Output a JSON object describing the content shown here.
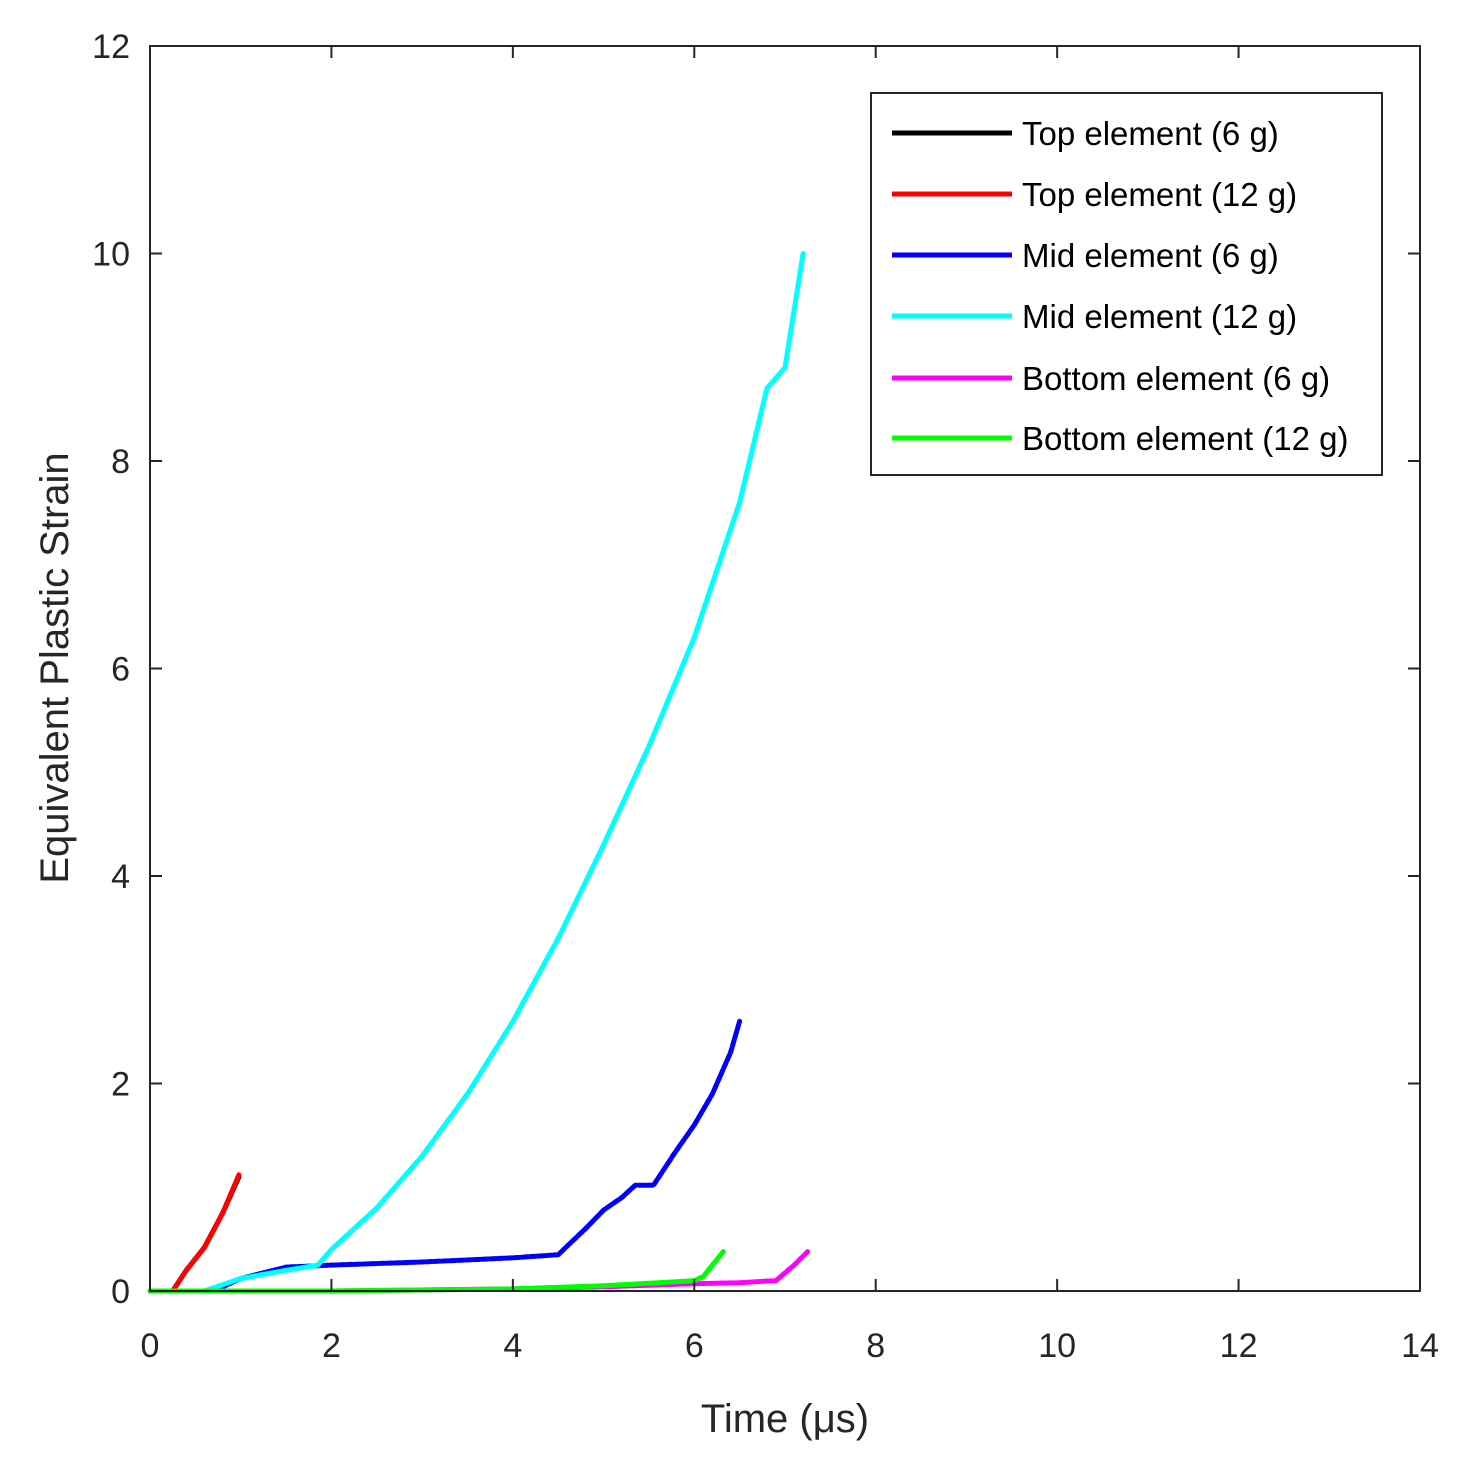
{
  "chart_data": {
    "type": "line",
    "title": "",
    "xlabel": "Time (μs)",
    "ylabel": "Equivalent Plastic Strain",
    "xlim": [
      0,
      14
    ],
    "ylim": [
      0,
      12
    ],
    "xticks": [
      0,
      2,
      4,
      6,
      8,
      10,
      12,
      14
    ],
    "yticks": [
      0,
      2,
      4,
      6,
      8,
      10,
      12
    ],
    "xtick_labels": [
      "0",
      "2",
      "4",
      "6",
      "8",
      "10",
      "12",
      "14"
    ],
    "ytick_labels": [
      "0",
      "2",
      "4",
      "6",
      "8",
      "10",
      "12"
    ],
    "grid": false,
    "legend_position": "top-right",
    "series": [
      {
        "name": "Top element (6 g)",
        "color": "#000000",
        "x": [
          0.25,
          0.4,
          0.6,
          0.8,
          0.98
        ],
        "y": [
          0.0,
          0.2,
          0.42,
          0.75,
          1.1
        ]
      },
      {
        "name": "Top element (12 g)",
        "color": "#ff0000",
        "x": [
          0.25,
          0.4,
          0.6,
          0.8,
          0.98
        ],
        "y": [
          0.0,
          0.2,
          0.42,
          0.75,
          1.12
        ]
      },
      {
        "name": "Mid element (6 g)",
        "color": "#0000ff",
        "x": [
          0.0,
          0.7,
          1.0,
          1.5,
          2.0,
          3.0,
          4.0,
          4.5,
          4.8,
          5.0,
          5.2,
          5.35,
          5.55,
          5.8,
          6.0,
          6.2,
          6.4,
          6.5
        ],
        "y": [
          0.0,
          0.0,
          0.12,
          0.23,
          0.25,
          0.28,
          0.32,
          0.35,
          0.6,
          0.78,
          0.9,
          1.02,
          1.02,
          1.35,
          1.6,
          1.9,
          2.3,
          2.6
        ],
        "style": "dotted-dense"
      },
      {
        "name": "Mid element (12 g)",
        "color": "#00ffff",
        "x": [
          0.0,
          0.6,
          1.0,
          1.5,
          1.85,
          2.0,
          2.5,
          3.0,
          3.5,
          4.0,
          4.5,
          5.0,
          5.5,
          6.0,
          6.5,
          6.8,
          7.0,
          7.2
        ],
        "y": [
          0.0,
          0.0,
          0.12,
          0.2,
          0.25,
          0.4,
          0.8,
          1.3,
          1.9,
          2.6,
          3.4,
          4.3,
          5.25,
          6.3,
          7.6,
          8.7,
          8.9,
          10.0
        ]
      },
      {
        "name": "Bottom element (6 g)",
        "color": "#ff00ff",
        "x": [
          0.0,
          2.0,
          4.0,
          5.0,
          6.0,
          6.5,
          6.9,
          7.1,
          7.25
        ],
        "y": [
          0.0,
          0.0,
          0.02,
          0.04,
          0.07,
          0.08,
          0.1,
          0.25,
          0.38
        ],
        "style": "dotted-dense"
      },
      {
        "name": "Bottom element (12 g)",
        "color": "#00ff00",
        "x": [
          0.0,
          2.0,
          4.0,
          5.0,
          5.8,
          6.0,
          6.1,
          6.2,
          6.32
        ],
        "y": [
          0.0,
          0.0,
          0.02,
          0.05,
          0.09,
          0.1,
          0.14,
          0.25,
          0.38
        ]
      }
    ]
  }
}
